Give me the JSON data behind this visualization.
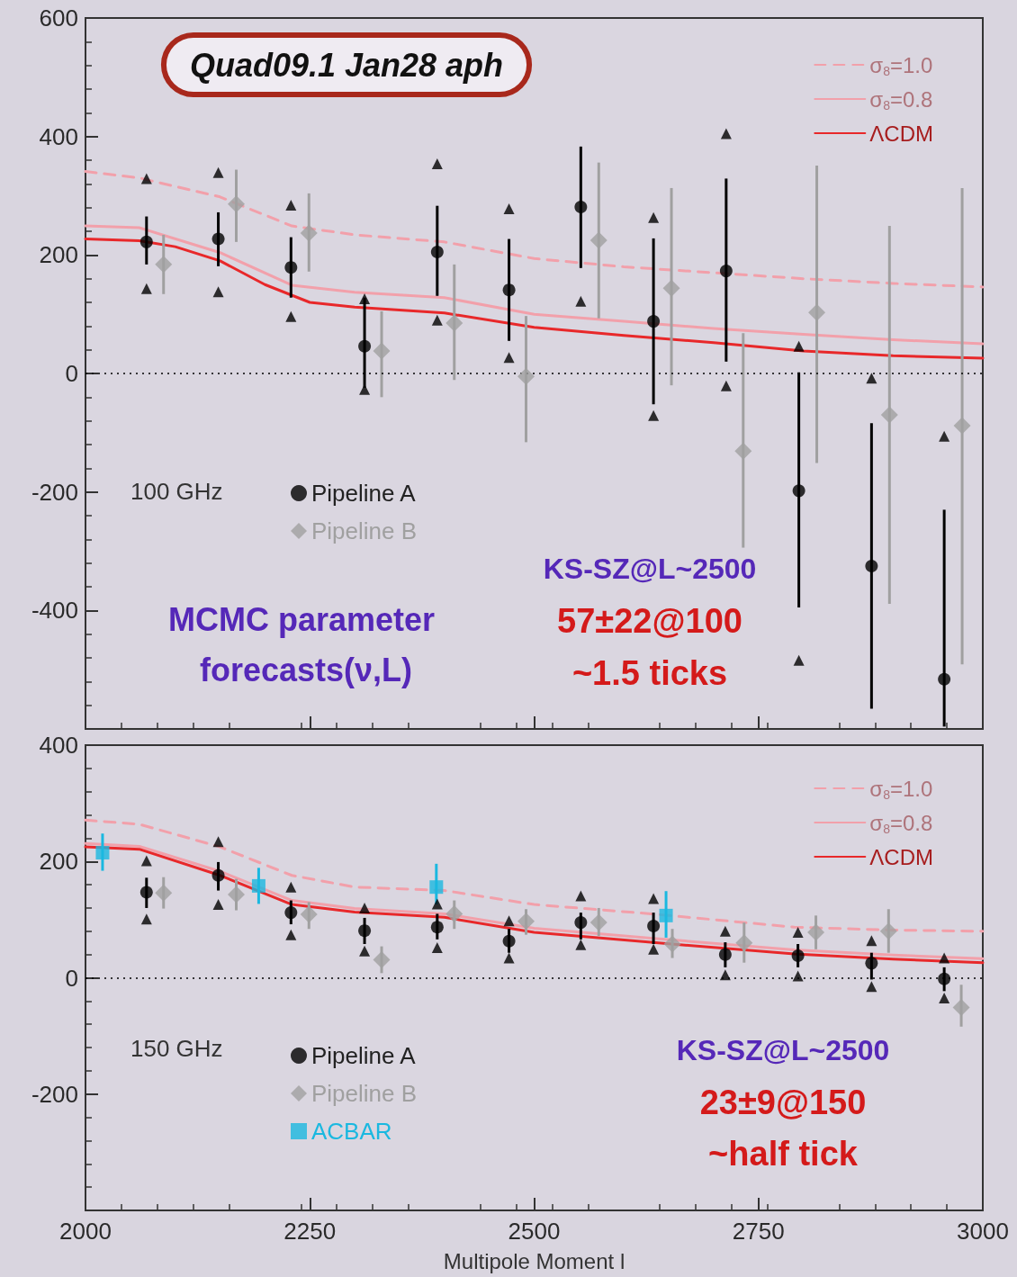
{
  "chart_data": [
    {
      "type": "scatter",
      "xlim": [
        2000,
        3000
      ],
      "xticks": [
        2000,
        2250,
        2500,
        2750,
        3000
      ],
      "ylim": [
        -600,
        600
      ],
      "yticks": [
        -400,
        -200,
        0,
        200,
        400,
        600
      ],
      "tick_labels": "y",
      "legend": "top right",
      "legend_title": "100 GHz",
      "annotations": [
        "Quad09.1 Jan28 aph",
        "MCMC parameter forecasts(ν,L)",
        "KS-SZ@L~2500",
        "57±22@100",
        "~1.5 ticks"
      ],
      "ref_lines": [
        {
          "axis": "y",
          "value": 0,
          "line_style": "dotted",
          "color": "#000000"
        }
      ],
      "series": [
        {
          "name": "σ$_{8}$=1.0",
          "type": "line",
          "color": "#f2a0aa",
          "line_style": "dashed",
          "marker": "none",
          "x": [
            2000,
            2060,
            2150,
            2230,
            2300,
            2400,
            2500,
            2600,
            2700,
            2800,
            2900,
            3000
          ],
          "values": [
            341,
            330,
            298,
            249,
            234,
            222,
            194,
            180,
            170,
            160,
            152,
            146
          ]
        },
        {
          "name": "σ$_{8}$=0.8",
          "type": "line",
          "color": "#f2a0aa",
          "line_style": "solid",
          "marker": "none",
          "x": [
            2000,
            2060,
            2150,
            2230,
            2300,
            2400,
            2500,
            2600,
            2700,
            2800,
            2900,
            3000
          ],
          "values": [
            249,
            246,
            204,
            149,
            137,
            128,
            100,
            88,
            76,
            66,
            57,
            50
          ]
        },
        {
          "name": "ΛCDM",
          "type": "line",
          "color": "#e8282a",
          "line_style": "solid",
          "marker": "none",
          "x": [
            2000,
            2060,
            2100,
            2150,
            2200,
            2250,
            2300,
            2400,
            2500,
            2600,
            2700,
            2800,
            2900,
            3000
          ],
          "values": [
            227,
            224,
            214,
            190,
            150,
            120,
            112,
            102,
            78,
            64,
            52,
            38,
            30,
            26
          ]
        },
        {
          "type": "scatter",
          "color": "#000000",
          "marker": "triangle",
          "x": [
            2068,
            2148,
            2229,
            2311,
            2392,
            2472,
            2633,
            2714,
            2795,
            2876,
            2957
          ],
          "values": [
            329,
            339,
            284,
            126,
            354,
            278,
            263,
            405,
            46,
            -8,
            -106
          ]
        },
        {
          "type": "scatter",
          "color": "#000000",
          "marker": "triangle",
          "x": [
            2068,
            2148,
            2229,
            2311,
            2392,
            2472,
            2552,
            2633,
            2714,
            2795
          ],
          "values": [
            143,
            138,
            96,
            -27,
            90,
            27,
            122,
            -71,
            -21,
            -484
          ]
        },
        {
          "name": "Pipeline A",
          "type": "scatter",
          "color": "#000000",
          "marker": "circle",
          "x": [
            2068,
            2148,
            2229,
            2311,
            2392,
            2472,
            2552,
            2633,
            2714,
            2795,
            2876,
            2957
          ],
          "values": [
            222,
            227,
            179,
            46,
            205,
            141,
            281,
            88,
            173,
            -198,
            -325,
            -516
          ],
          "errors": [
            [
              184,
              265
            ],
            [
              181,
              272
            ],
            [
              128,
              230
            ],
            [
              -24,
              128
            ],
            [
              131,
              283
            ],
            [
              55,
              227
            ],
            [
              178,
              383
            ],
            [
              -52,
              228
            ],
            [
              20,
              329
            ],
            [
              -395,
              2
            ],
            [
              -566,
              -84
            ],
            [
              -596,
              -230
            ]
          ]
        },
        {
          "name": "Pipeline B",
          "type": "scatter",
          "color": "#a0a0a0",
          "marker": "diamond",
          "x": [
            2087,
            2168,
            2249,
            2330,
            2411,
            2491,
            2572,
            2653,
            2733,
            2815,
            2896,
            2977
          ],
          "values": [
            184,
            286,
            237,
            38,
            85,
            -5,
            225,
            144,
            -131,
            103,
            -70,
            -88
          ],
          "errors": [
            [
              134,
              234
            ],
            [
              222,
              344
            ],
            [
              172,
              304
            ],
            [
              -40,
              105
            ],
            [
              -11,
              184
            ],
            [
              -116,
              97
            ],
            [
              93,
              356
            ],
            [
              -20,
              313
            ],
            [
              -294,
              68
            ],
            [
              -151,
              351
            ],
            [
              -389,
              249
            ],
            [
              -491,
              313
            ]
          ]
        }
      ]
    },
    {
      "type": "scatter",
      "xlim": [
        2000,
        3000
      ],
      "xticks": [
        2000,
        2250,
        2500,
        2750,
        3000
      ],
      "ylim": [
        -400,
        400
      ],
      "yticks": [
        -200,
        0,
        200,
        400
      ],
      "xlabel": "Multipole Moment l",
      "legend": "top right",
      "legend_title": "150 GHz",
      "annotations": [
        "KS-SZ@L~2500",
        "23±9@150",
        "~half tick"
      ],
      "ref_lines": [
        {
          "axis": "y",
          "value": 0,
          "line_style": "dotted",
          "color": "#000000"
        }
      ],
      "series": [
        {
          "name": "σ$_{8}$=1.0",
          "type": "line",
          "color": "#f2a0aa",
          "line_style": "dashed",
          "marker": "none",
          "x": [
            2000,
            2060,
            2150,
            2230,
            2300,
            2400,
            2500,
            2630,
            2790,
            2900,
            3000
          ],
          "values": [
            271,
            264,
            225,
            176,
            156,
            150,
            126,
            110,
            87,
            82,
            80
          ]
        },
        {
          "name": "σ$_{8}$=0.8",
          "type": "line",
          "color": "#f2a0aa",
          "line_style": "solid",
          "marker": "none",
          "x": [
            2000,
            2060,
            2150,
            2230,
            2300,
            2400,
            2500,
            2630,
            2790,
            2900,
            3000
          ],
          "values": [
            231,
            226,
            183,
            133,
            119,
            110,
            85,
            68,
            48,
            39,
            33
          ]
        },
        {
          "name": "ΛCDM",
          "type": "line",
          "color": "#e8282a",
          "line_style": "solid",
          "marker": "none",
          "x": [
            2000,
            2060,
            2150,
            2230,
            2300,
            2400,
            2500,
            2630,
            2790,
            2900,
            3000
          ],
          "values": [
            225,
            221,
            176,
            126,
            113,
            104,
            78,
            61,
            41,
            32,
            26
          ]
        },
        {
          "type": "scatter",
          "color": "#000000",
          "marker": "triangle",
          "x": [
            2068,
            2148,
            2229,
            2311,
            2392,
            2472,
            2552,
            2633,
            2713,
            2794,
            2876,
            2957
          ],
          "values": [
            201,
            234,
            156,
            120,
            127,
            98,
            141,
            136,
            80,
            78,
            64,
            34
          ]
        },
        {
          "type": "scatter",
          "color": "#000000",
          "marker": "triangle",
          "x": [
            2068,
            2148,
            2229,
            2311,
            2392,
            2472,
            2552,
            2633,
            2713,
            2794,
            2876,
            2957
          ],
          "values": [
            101,
            126,
            74,
            46,
            52,
            34,
            57,
            49,
            5,
            3,
            -15,
            -35
          ]
        },
        {
          "name": "Pipeline A",
          "type": "scatter",
          "color": "#000000",
          "marker": "circle",
          "x": [
            2068,
            2148,
            2229,
            2311,
            2392,
            2472,
            2552,
            2633,
            2713,
            2794,
            2876,
            2957
          ],
          "values": [
            147,
            176,
            112,
            81,
            87,
            63,
            95,
            89,
            40,
            38,
            25,
            -2
          ],
          "errors": [
            [
              120,
              172
            ],
            [
              150,
              199
            ],
            [
              92,
              133
            ],
            [
              58,
              103
            ],
            [
              66,
              110
            ],
            [
              43,
              84
            ],
            [
              66,
              112
            ],
            [
              58,
              112
            ],
            [
              18,
              61
            ],
            [
              18,
              58
            ],
            [
              -3,
              43
            ],
            [
              -23,
              18
            ]
          ]
        },
        {
          "name": "Pipeline B",
          "type": "scatter",
          "color": "#a0a0a0",
          "marker": "diamond",
          "x": [
            2087,
            2168,
            2249,
            2330,
            2411,
            2491,
            2572,
            2654,
            2734,
            2814,
            2895,
            2976
          ],
          "values": [
            146,
            143,
            109,
            31,
            110,
            97,
            95,
            58,
            60,
            78,
            80,
            -51
          ],
          "errors": [
            [
              119,
              173
            ],
            [
              116,
              170
            ],
            [
              84,
              130
            ],
            [
              8,
              54
            ],
            [
              84,
              133
            ],
            [
              74,
              118
            ],
            [
              72,
              120
            ],
            [
              34,
              84
            ],
            [
              26,
              95
            ],
            [
              49,
              107
            ],
            [
              43,
              118
            ],
            [
              -84,
              -12
            ]
          ]
        },
        {
          "name": "ACBAR",
          "type": "scatter",
          "color": "#1ab8e0",
          "marker": "square",
          "x": [
            2019,
            2193,
            2391,
            2647
          ],
          "values": [
            215,
            158,
            156,
            107
          ],
          "errors": [
            [
              184,
              248
            ],
            [
              127,
              189
            ],
            [
              126,
              196
            ],
            [
              69,
              149
            ]
          ]
        }
      ]
    }
  ]
}
